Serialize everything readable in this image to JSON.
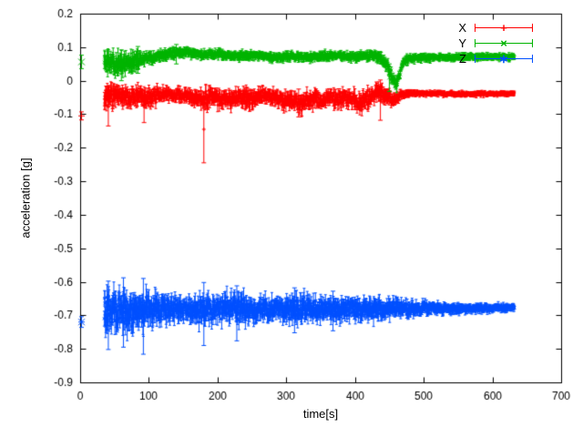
{
  "chart_data": {
    "type": "scatter",
    "title": "",
    "xlabel": "time[s]",
    "ylabel": "acceleration [g]",
    "xlim": [
      0,
      700
    ],
    "ylim": [
      -0.9,
      0.2
    ],
    "xticks": [
      0,
      100,
      200,
      300,
      400,
      500,
      600,
      700
    ],
    "xtick_labels": [
      "0",
      "100",
      "200",
      "300",
      "400",
      "500",
      "600",
      "700"
    ],
    "yticks": [
      0.2,
      0.1,
      0,
      -0.1,
      -0.2,
      -0.3,
      -0.4,
      -0.5,
      -0.6,
      -0.7,
      -0.8,
      -0.9
    ],
    "ytick_labels": [
      "0.2",
      "0.1",
      "0",
      "-0.1",
      "-0.2",
      "-0.3",
      "-0.4",
      "-0.5",
      "-0.6",
      "-0.7",
      "-0.8",
      "-0.9"
    ],
    "grid": false,
    "legend_position": "top-right",
    "axis_color": "#000000",
    "background": "#ffffff",
    "style": "points with errorbars",
    "series": [
      {
        "name": "X",
        "color": "#ff0000",
        "marker": "plus",
        "marker_glyph": "+",
        "t_start": 35,
        "t_end": 632,
        "t_step": 0.5,
        "lead_points": [
          {
            "x": 2,
            "y": -0.105,
            "err": 0.012
          }
        ],
        "mean_profile": [
          [
            35,
            -0.048
          ],
          [
            50,
            -0.045
          ],
          [
            65,
            -0.05
          ],
          [
            80,
            -0.047
          ],
          [
            95,
            -0.05
          ],
          [
            110,
            -0.045
          ],
          [
            125,
            -0.044
          ],
          [
            140,
            -0.042
          ],
          [
            155,
            -0.045
          ],
          [
            170,
            -0.05
          ],
          [
            180,
            -0.055
          ],
          [
            190,
            -0.048
          ],
          [
            205,
            -0.052
          ],
          [
            220,
            -0.06
          ],
          [
            235,
            -0.05
          ],
          [
            250,
            -0.055
          ],
          [
            265,
            -0.045
          ],
          [
            280,
            -0.05
          ],
          [
            295,
            -0.06
          ],
          [
            310,
            -0.058
          ],
          [
            320,
            -0.068
          ],
          [
            335,
            -0.052
          ],
          [
            350,
            -0.058
          ],
          [
            365,
            -0.05
          ],
          [
            380,
            -0.055
          ],
          [
            395,
            -0.052
          ],
          [
            405,
            -0.068
          ],
          [
            415,
            -0.058
          ],
          [
            425,
            -0.042
          ],
          [
            435,
            -0.028
          ],
          [
            445,
            -0.042
          ],
          [
            455,
            -0.058
          ],
          [
            465,
            -0.045
          ],
          [
            475,
            -0.038
          ],
          [
            520,
            -0.038
          ],
          [
            570,
            -0.04
          ],
          [
            632,
            -0.038
          ]
        ],
        "noise_profile": [
          [
            35,
            0.034
          ],
          [
            55,
            0.03
          ],
          [
            75,
            0.026
          ],
          [
            95,
            0.028
          ],
          [
            115,
            0.02
          ],
          [
            140,
            0.016
          ],
          [
            165,
            0.02
          ],
          [
            185,
            0.026
          ],
          [
            210,
            0.022
          ],
          [
            240,
            0.026
          ],
          [
            270,
            0.02
          ],
          [
            300,
            0.024
          ],
          [
            330,
            0.026
          ],
          [
            360,
            0.02
          ],
          [
            390,
            0.024
          ],
          [
            412,
            0.026
          ],
          [
            432,
            0.024
          ],
          [
            452,
            0.02
          ],
          [
            468,
            0.012
          ],
          [
            485,
            0.008
          ],
          [
            560,
            0.007
          ],
          [
            632,
            0.007
          ]
        ],
        "outlier_bars": [
          {
            "x": 180,
            "lo": -0.245,
            "hi": -0.045
          },
          {
            "x": 41,
            "lo": -0.135,
            "hi": -0.02
          },
          {
            "x": 93,
            "lo": -0.125,
            "hi": -0.028
          },
          {
            "x": 318,
            "lo": -0.108,
            "hi": -0.025
          },
          {
            "x": 437,
            "lo": -0.118,
            "hi": 0.002
          }
        ]
      },
      {
        "name": "Y",
        "color": "#00b400",
        "marker": "cross",
        "marker_glyph": "×",
        "t_start": 35,
        "t_end": 632,
        "t_step": 0.5,
        "lead_points": [
          {
            "x": 2,
            "y": 0.056,
            "err": 0.02
          }
        ],
        "mean_profile": [
          [
            35,
            0.058
          ],
          [
            50,
            0.052
          ],
          [
            65,
            0.05
          ],
          [
            80,
            0.06
          ],
          [
            95,
            0.068
          ],
          [
            110,
            0.072
          ],
          [
            125,
            0.078
          ],
          [
            140,
            0.083
          ],
          [
            155,
            0.086
          ],
          [
            170,
            0.08
          ],
          [
            185,
            0.078
          ],
          [
            200,
            0.08
          ],
          [
            215,
            0.076
          ],
          [
            230,
            0.073
          ],
          [
            250,
            0.076
          ],
          [
            270,
            0.073
          ],
          [
            290,
            0.07
          ],
          [
            310,
            0.073
          ],
          [
            330,
            0.068
          ],
          [
            350,
            0.073
          ],
          [
            370,
            0.076
          ],
          [
            390,
            0.071
          ],
          [
            410,
            0.073
          ],
          [
            425,
            0.076
          ],
          [
            438,
            0.065
          ],
          [
            448,
            0.04
          ],
          [
            456,
            0.0
          ],
          [
            460,
            -0.012
          ],
          [
            464,
            0.015
          ],
          [
            470,
            0.055
          ],
          [
            478,
            0.066
          ],
          [
            495,
            0.069
          ],
          [
            540,
            0.07
          ],
          [
            590,
            0.072
          ],
          [
            632,
            0.07
          ]
        ],
        "noise_profile": [
          [
            35,
            0.028
          ],
          [
            55,
            0.03
          ],
          [
            75,
            0.026
          ],
          [
            95,
            0.016
          ],
          [
            120,
            0.014
          ],
          [
            150,
            0.013
          ],
          [
            180,
            0.012
          ],
          [
            220,
            0.012
          ],
          [
            260,
            0.012
          ],
          [
            300,
            0.012
          ],
          [
            340,
            0.012
          ],
          [
            380,
            0.012
          ],
          [
            420,
            0.013
          ],
          [
            440,
            0.016
          ],
          [
            455,
            0.018
          ],
          [
            468,
            0.013
          ],
          [
            490,
            0.01
          ],
          [
            560,
            0.009
          ],
          [
            632,
            0.009
          ]
        ],
        "outlier_bars": [
          {
            "x": 60,
            "lo": 0.0,
            "hi": 0.092
          },
          {
            "x": 84,
            "lo": 0.022,
            "hi": 0.102
          },
          {
            "x": 140,
            "lo": 0.05,
            "hi": 0.108
          },
          {
            "x": 450,
            "lo": -0.032,
            "hi": 0.05
          }
        ]
      },
      {
        "name": "Z",
        "color": "#0050ff",
        "marker": "asterisk",
        "marker_glyph": "∗",
        "t_start": 35,
        "t_end": 632,
        "t_step": 0.5,
        "lead_points": [
          {
            "x": 2,
            "y": -0.72,
            "err": 0.016
          }
        ],
        "mean_profile": [
          [
            35,
            -0.685
          ],
          [
            60,
            -0.69
          ],
          [
            90,
            -0.684
          ],
          [
            120,
            -0.68
          ],
          [
            150,
            -0.682
          ],
          [
            180,
            -0.685
          ],
          [
            210,
            -0.68
          ],
          [
            240,
            -0.682
          ],
          [
            270,
            -0.68
          ],
          [
            300,
            -0.683
          ],
          [
            330,
            -0.68
          ],
          [
            360,
            -0.682
          ],
          [
            390,
            -0.68
          ],
          [
            420,
            -0.682
          ],
          [
            450,
            -0.68
          ],
          [
            480,
            -0.68
          ],
          [
            520,
            -0.679
          ],
          [
            560,
            -0.679
          ],
          [
            600,
            -0.678
          ],
          [
            632,
            -0.678
          ]
        ],
        "noise_profile": [
          [
            35,
            0.052
          ],
          [
            50,
            0.058
          ],
          [
            70,
            0.054
          ],
          [
            90,
            0.048
          ],
          [
            110,
            0.04
          ],
          [
            130,
            0.034
          ],
          [
            150,
            0.03
          ],
          [
            175,
            0.038
          ],
          [
            195,
            0.034
          ],
          [
            225,
            0.04
          ],
          [
            255,
            0.034
          ],
          [
            285,
            0.03
          ],
          [
            315,
            0.036
          ],
          [
            345,
            0.03
          ],
          [
            375,
            0.032
          ],
          [
            405,
            0.03
          ],
          [
            428,
            0.032
          ],
          [
            450,
            0.024
          ],
          [
            480,
            0.02
          ],
          [
            520,
            0.016
          ],
          [
            560,
            0.013
          ],
          [
            600,
            0.011
          ],
          [
            632,
            0.01
          ]
        ],
        "outlier_bars": [
          {
            "x": 41,
            "lo": -0.802,
            "hi": -0.598
          },
          {
            "x": 63,
            "lo": -0.795,
            "hi": -0.588
          },
          {
            "x": 92,
            "lo": -0.816,
            "hi": -0.59
          },
          {
            "x": 180,
            "lo": -0.79,
            "hi": -0.602
          },
          {
            "x": 228,
            "lo": -0.776,
            "hi": -0.612
          },
          {
            "x": 312,
            "lo": -0.752,
            "hi": -0.618
          },
          {
            "x": 368,
            "lo": -0.746,
            "hi": -0.628
          }
        ]
      }
    ]
  }
}
